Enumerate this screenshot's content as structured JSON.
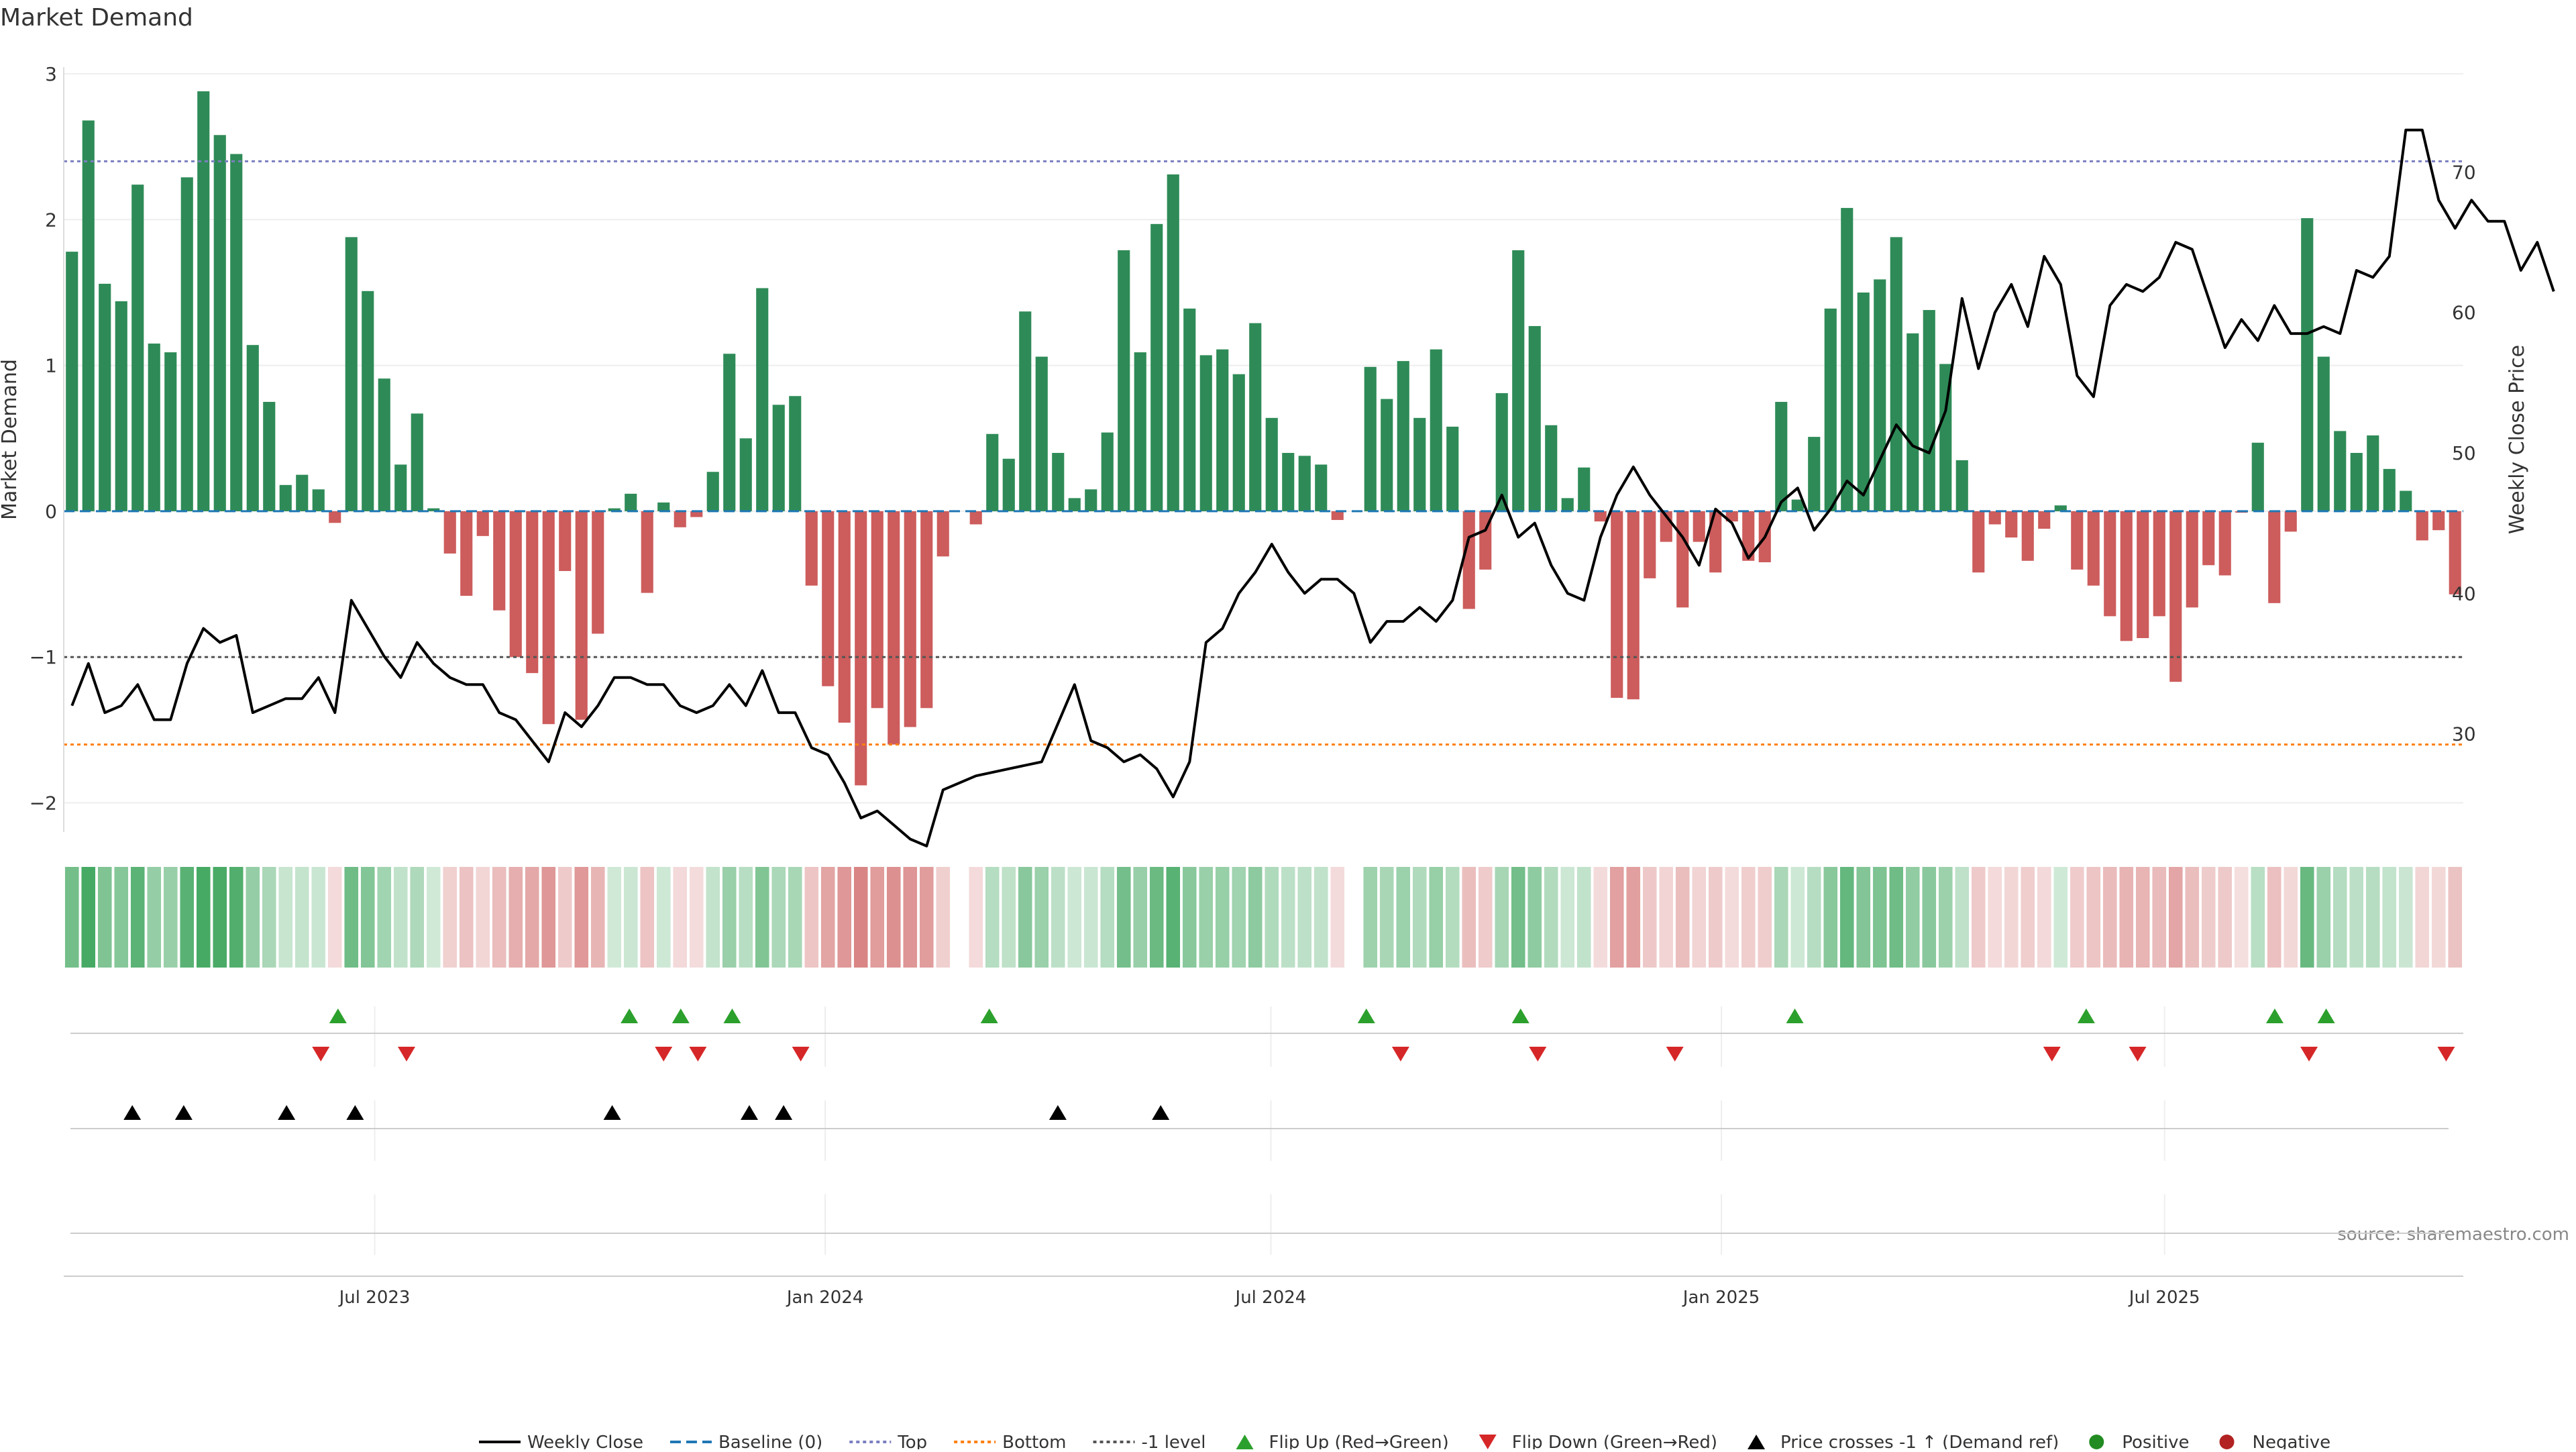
{
  "title": "Market Demand",
  "source_note": "source: sharemaestro.com",
  "chart_data": {
    "type": "bar",
    "subtype": "combo bar + line with event strips",
    "title": "Market Demand",
    "ylabel_left": "Market Demand",
    "ylabel_right": "Weekly Close Price",
    "ylim_left": [
      -2.2,
      3.0
    ],
    "ylim_right": [
      23,
      77
    ],
    "yticks_left": [
      3,
      2,
      1,
      0,
      -1,
      -2
    ],
    "yticks_left_labels": [
      "3",
      "2",
      "1",
      "0",
      "−1",
      "−2"
    ],
    "yticks_right": [
      70,
      60,
      50,
      40,
      30
    ],
    "yticks_right_labels": [
      "70",
      "60",
      "50",
      "40",
      "30"
    ],
    "x_start": "2023-02-24",
    "x_end": "2025-10-31",
    "x_ticks": [
      "2023-07-01",
      "2024-01-01",
      "2024-07-01",
      "2025-01-01",
      "2025-07-01"
    ],
    "x_tick_labels": [
      "Jul 2023",
      "Jan 2024",
      "Jul 2024",
      "Jan 2025",
      "Jul 2025"
    ],
    "reference_lines": {
      "baseline": 0,
      "top": 2.4,
      "bottom": -1.6,
      "minus_one": -1
    },
    "colors": {
      "positive": "#2e8b57",
      "negative": "#cd5c5c",
      "price": "#000000",
      "baseline": "#1f77b4",
      "top": "#7b7fc0",
      "bottom": "#ff7f0e",
      "minus_one": "#555555",
      "flip_up": "#2ca02c",
      "flip_down": "#d62728",
      "cross": "#000000",
      "legend_positive": "#228b22",
      "legend_negative": "#b22222"
    },
    "series": [
      {
        "name": "Market Demand",
        "values": [
          1.78,
          2.68,
          1.56,
          1.44,
          2.24,
          1.15,
          1.09,
          2.29,
          2.88,
          2.58,
          2.45,
          1.14,
          0.75,
          0.18,
          0.25,
          0.15,
          -0.08,
          1.88,
          1.51,
          0.91,
          0.32,
          0.67,
          0.02,
          -0.29,
          -0.58,
          -0.17,
          -0.68,
          -1.0,
          -1.11,
          -1.46,
          -0.41,
          -1.43,
          -0.84,
          0.02,
          0.12,
          -0.56,
          0.06,
          -0.11,
          -0.04,
          0.27,
          1.08,
          0.5,
          1.53,
          0.73,
          0.79,
          -0.51,
          -1.2,
          -1.45,
          -1.88,
          -1.35,
          -1.6,
          -1.48,
          -1.35,
          -0.31,
          null,
          -0.09,
          0.53,
          0.36,
          1.37,
          1.06,
          0.4,
          0.09,
          0.15,
          0.54,
          1.79,
          1.09,
          1.97,
          2.31,
          1.39,
          1.07,
          1.11,
          0.94,
          1.29,
          0.64,
          0.4,
          0.38,
          0.32,
          -0.06,
          null,
          0.99,
          0.77,
          1.03,
          0.64,
          1.11,
          0.58,
          -0.67,
          -0.4,
          0.81,
          1.79,
          1.27,
          0.59,
          0.09,
          0.3,
          -0.07,
          -1.28,
          -1.29,
          -0.46,
          -0.21,
          -0.66,
          -0.21,
          -0.42,
          -0.07,
          -0.34,
          -0.35,
          0.75,
          0.08,
          0.51,
          1.39,
          2.08,
          1.5,
          1.59,
          1.88,
          1.22,
          1.38,
          1.01,
          0.35,
          -0.42,
          -0.09,
          -0.18,
          -0.34,
          -0.12,
          0.04,
          -0.4,
          -0.51,
          -0.72,
          -0.89,
          -0.87,
          -0.72,
          -1.17,
          -0.66,
          -0.37,
          -0.44,
          -0.01,
          0.47,
          -0.63,
          -0.14,
          2.01,
          1.06,
          0.55,
          0.4,
          0.52,
          0.29,
          0.14,
          -0.2,
          -0.13,
          -0.57
        ]
      },
      {
        "name": "Weekly Close",
        "values": [
          32,
          35,
          31.5,
          32,
          33.5,
          31,
          31,
          35,
          37.5,
          36.5,
          37,
          31.5,
          32,
          32.5,
          32.5,
          34,
          31.5,
          39.5,
          37.5,
          35.5,
          34,
          36.5,
          35,
          34,
          33.5,
          33.5,
          31.5,
          31,
          29.5,
          28,
          31.5,
          30.5,
          32,
          34,
          34,
          33.5,
          33.5,
          32,
          31.5,
          32,
          33.5,
          32,
          34.5,
          31.5,
          31.5,
          29,
          28.5,
          26.5,
          24,
          24.5,
          23.5,
          22.5,
          22,
          26,
          null,
          27,
          null,
          27.5,
          null,
          28,
          null,
          33.5,
          29.5,
          29,
          28,
          28.5,
          27.5,
          25.5,
          28,
          36.5,
          37.5,
          40,
          41.5,
          43.5,
          41.5,
          40,
          41,
          41,
          40,
          36.5,
          38,
          38,
          39,
          38,
          39.5,
          44,
          44.5,
          47,
          44,
          45,
          42,
          40,
          39.5,
          44,
          47,
          49,
          47,
          45.5,
          44,
          42,
          46,
          45,
          42.5,
          44,
          46.5,
          47.5,
          44.5,
          46,
          48,
          47,
          49.5,
          52,
          50.5,
          50,
          53,
          61,
          56,
          60,
          62,
          59,
          64,
          62,
          55.5,
          54,
          60.5,
          62,
          61.5,
          62.5,
          65,
          64.5,
          61,
          57.5,
          59.5,
          58,
          60.5,
          58.5,
          58.5,
          59,
          58.5,
          63,
          62.5,
          64,
          73,
          73,
          68,
          66,
          68,
          66.5,
          66.5,
          63,
          65,
          61.5
        ]
      }
    ],
    "demand_intensity_strip": {
      "gap_index": 54
    },
    "events": {
      "flip_up_dates": [
        "2023-06-16",
        "2023-10-13",
        "2023-11-03",
        "2023-11-24",
        "2024-03-08",
        "2024-08-09",
        "2024-10-11",
        "2025-01-31",
        "2025-05-30",
        "2025-08-15",
        "2025-09-05"
      ],
      "flip_down_dates": [
        "2023-06-09",
        "2023-07-14",
        "2023-10-27",
        "2023-11-10",
        "2023-12-22",
        "2024-08-23",
        "2024-10-18",
        "2024-12-13",
        "2025-05-16",
        "2025-06-20",
        "2025-08-29",
        "2025-10-24"
      ],
      "price_cross_dates": [
        "2023-03-24",
        "2023-04-14",
        "2023-05-26",
        "2023-06-23",
        "2023-10-06",
        "2023-12-01",
        "2023-12-15",
        "2024-04-05",
        "2024-05-17"
      ]
    },
    "legend": [
      {
        "label": "Weekly Close",
        "kind": "line-solid",
        "color": "#000000"
      },
      {
        "label": "Baseline (0)",
        "kind": "line-dash",
        "color": "#1f77b4"
      },
      {
        "label": "Top",
        "kind": "line-dot",
        "color": "#7b7fc0"
      },
      {
        "label": "Bottom",
        "kind": "line-dot",
        "color": "#ff7f0e"
      },
      {
        "label": "-1 level",
        "kind": "line-dot",
        "color": "#555555"
      },
      {
        "label": "Flip Up (Red→Green)",
        "kind": "tri-up",
        "color": "#2ca02c"
      },
      {
        "label": "Flip Down (Green→Red)",
        "kind": "tri-down",
        "color": "#d62728"
      },
      {
        "label": "Price crosses -1 ↑ (Demand ref)",
        "kind": "tri-up",
        "color": "#000000"
      },
      {
        "label": "Positive",
        "kind": "dot",
        "color": "#228b22"
      },
      {
        "label": "Negative",
        "kind": "dot",
        "color": "#b22222"
      }
    ]
  }
}
